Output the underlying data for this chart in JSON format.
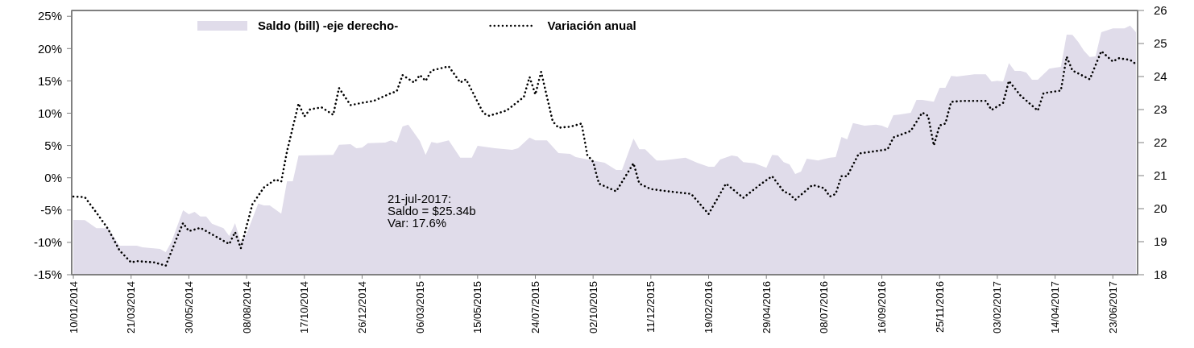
{
  "chart_data": {
    "type": "line",
    "legend": "top",
    "annotations": [
      "21-jul-2017:\nSaldo = $25.34b\nVar: 17.6%"
    ],
    "xlim": [
      "2014-01-08",
      "2017-07-23"
    ],
    "xticks": [
      {
        "value": "2014-01-10",
        "label": "10/01/2014"
      },
      {
        "value": "2014-03-21",
        "label": "21/03/2014"
      },
      {
        "value": "2014-05-30",
        "label": "30/05/2014"
      },
      {
        "value": "2014-08-08",
        "label": "08/08/2014"
      },
      {
        "value": "2014-10-17",
        "label": "17/10/2014"
      },
      {
        "value": "2014-12-26",
        "label": "26/12/2014"
      },
      {
        "value": "2015-03-06",
        "label": "06/03/2015"
      },
      {
        "value": "2015-05-15",
        "label": "15/05/2015"
      },
      {
        "value": "2015-07-24",
        "label": "24/07/2015"
      },
      {
        "value": "2015-10-02",
        "label": "02/10/2015"
      },
      {
        "value": "2015-12-11",
        "label": "11/12/2015"
      },
      {
        "value": "2016-02-19",
        "label": "19/02/2016"
      },
      {
        "value": "2016-04-29",
        "label": "29/04/2016"
      },
      {
        "value": "2016-07-08",
        "label": "08/07/2016"
      },
      {
        "value": "2016-09-16",
        "label": "16/09/2016"
      },
      {
        "value": "2016-11-25",
        "label": "25/11/2016"
      },
      {
        "value": "2017-02-03",
        "label": "03/02/2017"
      },
      {
        "value": "2017-04-14",
        "label": "14/04/2017"
      },
      {
        "value": "2017-06-23",
        "label": "23/06/2017"
      }
    ],
    "ylim": [
      -15,
      25.9
    ],
    "yticks": [
      {
        "value": -15,
        "label": "-15%"
      },
      {
        "value": -10,
        "label": "-10%"
      },
      {
        "value": -5,
        "label": "-5%"
      },
      {
        "value": 0,
        "label": "0%"
      },
      {
        "value": 5,
        "label": "5%"
      },
      {
        "value": 10,
        "label": "10%"
      },
      {
        "value": 15,
        "label": "15%"
      },
      {
        "value": 20,
        "label": "20%"
      },
      {
        "value": 25,
        "label": "25%"
      }
    ],
    "y2lim": [
      18,
      26
    ],
    "y2ticks": [
      18,
      19,
      20,
      21,
      22,
      23,
      24,
      25,
      26
    ],
    "series": [
      {
        "name": "Saldo (bill) -eje derecho-",
        "type": "area",
        "axis": "y2",
        "color": "#e0dcea",
        "x": [
          "2014-01-10",
          "2014-01-24",
          "2014-02-07",
          "2014-02-21",
          "2014-03-07",
          "2014-03-28",
          "2014-04-04",
          "2014-04-25",
          "2014-05-02",
          "2014-05-09",
          "2014-05-23",
          "2014-05-30",
          "2014-06-06",
          "2014-06-13",
          "2014-06-20",
          "2014-06-27",
          "2014-07-11",
          "2014-07-18",
          "2014-07-25",
          "2014-08-01",
          "2014-08-08",
          "2014-08-22",
          "2014-08-29",
          "2014-09-05",
          "2014-09-19",
          "2014-09-26",
          "2014-10-03",
          "2014-10-10",
          "2014-11-21",
          "2014-11-28",
          "2014-12-12",
          "2014-12-19",
          "2014-12-26",
          "2015-01-02",
          "2015-01-23",
          "2015-01-30",
          "2015-02-06",
          "2015-02-13",
          "2015-02-20",
          "2015-03-06",
          "2015-03-13",
          "2015-03-20",
          "2015-03-27",
          "2015-04-10",
          "2015-04-24",
          "2015-05-08",
          "2015-05-15",
          "2015-06-05",
          "2015-06-26",
          "2015-07-03",
          "2015-07-17",
          "2015-07-24",
          "2015-08-07",
          "2015-08-21",
          "2015-09-04",
          "2015-09-11",
          "2015-10-02",
          "2015-10-16",
          "2015-10-30",
          "2015-11-06",
          "2015-11-20",
          "2015-11-27",
          "2015-12-04",
          "2015-12-18",
          "2015-12-25",
          "2016-01-22",
          "2016-02-05",
          "2016-02-19",
          "2016-02-26",
          "2016-03-04",
          "2016-03-18",
          "2016-03-25",
          "2016-04-01",
          "2016-04-15",
          "2016-04-29",
          "2016-05-06",
          "2016-05-13",
          "2016-05-20",
          "2016-05-27",
          "2016-06-03",
          "2016-06-10",
          "2016-06-17",
          "2016-07-01",
          "2016-07-15",
          "2016-07-22",
          "2016-07-29",
          "2016-08-05",
          "2016-08-12",
          "2016-08-26",
          "2016-09-09",
          "2016-09-16",
          "2016-09-23",
          "2016-09-30",
          "2016-10-07",
          "2016-10-21",
          "2016-10-28",
          "2016-11-04",
          "2016-11-18",
          "2016-11-25",
          "2016-12-02",
          "2016-12-09",
          "2016-12-16",
          "2017-01-06",
          "2017-01-20",
          "2017-01-27",
          "2017-02-03",
          "2017-02-10",
          "2017-02-17",
          "2017-02-24",
          "2017-03-03",
          "2017-03-10",
          "2017-03-17",
          "2017-03-24",
          "2017-04-07",
          "2017-04-14",
          "2017-04-21",
          "2017-04-28",
          "2017-05-05",
          "2017-05-12",
          "2017-05-19",
          "2017-05-26",
          "2017-06-02",
          "2017-06-09",
          "2017-06-23",
          "2017-07-07",
          "2017-07-14",
          "2017-07-21"
        ],
        "values": [
          19.66,
          19.65,
          19.41,
          19.41,
          18.88,
          18.88,
          18.83,
          18.78,
          18.68,
          19.0,
          19.95,
          19.83,
          19.9,
          19.76,
          19.76,
          19.54,
          19.41,
          19.17,
          19.56,
          19.0,
          19.24,
          20.15,
          20.1,
          20.1,
          19.85,
          20.83,
          20.83,
          21.61,
          21.63,
          21.93,
          21.95,
          21.83,
          21.85,
          21.98,
          22.0,
          22.07,
          22.0,
          22.49,
          22.54,
          22.05,
          21.63,
          22.02,
          21.98,
          22.07,
          21.54,
          21.54,
          21.9,
          21.83,
          21.78,
          21.83,
          22.15,
          22.07,
          22.07,
          21.68,
          21.66,
          21.56,
          21.46,
          21.39,
          21.17,
          21.17,
          22.12,
          21.8,
          21.8,
          21.46,
          21.46,
          21.54,
          21.39,
          21.27,
          21.27,
          21.49,
          21.61,
          21.58,
          21.41,
          21.37,
          21.24,
          21.63,
          21.61,
          21.41,
          21.34,
          21.05,
          21.12,
          21.51,
          21.46,
          21.54,
          21.56,
          22.17,
          22.1,
          22.59,
          22.51,
          22.54,
          22.51,
          22.44,
          22.83,
          22.85,
          22.9,
          23.29,
          23.29,
          23.24,
          23.66,
          23.66,
          24.02,
          24.0,
          24.07,
          24.07,
          23.85,
          23.87,
          23.85,
          24.41,
          24.17,
          24.17,
          24.12,
          23.9,
          23.9,
          24.24,
          24.27,
          24.29,
          25.27,
          25.26,
          25.05,
          24.78,
          24.59,
          24.61,
          25.34,
          25.46,
          25.46,
          25.54,
          25.34
        ]
      },
      {
        "name": "Variación anual",
        "line_style": "dotted",
        "color": "#000000",
        "x": [
          "2014-01-10",
          "2014-01-24",
          "2014-02-07",
          "2014-02-21",
          "2014-03-07",
          "2014-03-21",
          "2014-03-28",
          "2014-04-18",
          "2014-05-02",
          "2014-05-16",
          "2014-05-23",
          "2014-05-30",
          "2014-06-13",
          "2014-06-27",
          "2014-07-18",
          "2014-07-25",
          "2014-08-01",
          "2014-08-15",
          "2014-08-29",
          "2014-09-12",
          "2014-09-19",
          "2014-09-26",
          "2014-10-10",
          "2014-10-17",
          "2014-10-24",
          "2014-11-07",
          "2014-11-21",
          "2014-11-28",
          "2014-12-12",
          "2014-12-26",
          "2015-01-09",
          "2015-01-30",
          "2015-02-06",
          "2015-02-13",
          "2015-02-27",
          "2015-03-06",
          "2015-03-13",
          "2015-03-20",
          "2015-04-10",
          "2015-04-24",
          "2015-05-01",
          "2015-05-22",
          "2015-05-29",
          "2015-06-19",
          "2015-07-10",
          "2015-07-17",
          "2015-07-24",
          "2015-07-31",
          "2015-08-14",
          "2015-08-21",
          "2015-09-04",
          "2015-09-18",
          "2015-09-25",
          "2015-10-02",
          "2015-10-09",
          "2015-10-30",
          "2015-11-20",
          "2015-11-27",
          "2015-12-11",
          "2016-01-01",
          "2016-01-29",
          "2016-02-19",
          "2016-03-11",
          "2016-04-01",
          "2016-04-22",
          "2016-05-06",
          "2016-05-20",
          "2016-05-27",
          "2016-06-03",
          "2016-06-24",
          "2016-07-08",
          "2016-07-15",
          "2016-07-22",
          "2016-07-29",
          "2016-08-05",
          "2016-08-19",
          "2016-09-02",
          "2016-09-23",
          "2016-09-30",
          "2016-10-21",
          "2016-11-04",
          "2016-11-11",
          "2016-11-18",
          "2016-11-25",
          "2016-12-02",
          "2016-12-09",
          "2016-12-23",
          "2017-01-20",
          "2017-01-27",
          "2017-02-10",
          "2017-02-17",
          "2017-03-03",
          "2017-03-24",
          "2017-03-31",
          "2017-04-21",
          "2017-04-28",
          "2017-05-05",
          "2017-05-26",
          "2017-06-09",
          "2017-06-23",
          "2017-06-30",
          "2017-07-14",
          "2017-07-21"
        ],
        "values": [
          -2.9,
          -3.0,
          -5.4,
          -7.9,
          -11.25,
          -13.1,
          -12.9,
          -13.1,
          -13.6,
          -9.1,
          -7.0,
          -8.25,
          -7.75,
          -8.75,
          -10.25,
          -8.4,
          -10.9,
          -4.1,
          -1.5,
          -0.25,
          -0.6,
          4.1,
          11.5,
          9.5,
          10.6,
          10.9,
          9.75,
          13.9,
          11.25,
          11.6,
          11.9,
          13.1,
          13.4,
          15.9,
          14.75,
          15.9,
          15.0,
          16.6,
          17.25,
          14.75,
          15.25,
          10.0,
          9.6,
          10.4,
          12.5,
          15.6,
          12.9,
          16.4,
          8.75,
          7.75,
          7.9,
          8.4,
          3.5,
          2.5,
          -0.9,
          -2.1,
          2.25,
          -0.9,
          -1.75,
          -2.1,
          -2.5,
          -5.6,
          -0.9,
          -3.1,
          -1.0,
          0.25,
          -2.1,
          -2.5,
          -3.4,
          -1.1,
          -1.6,
          -2.9,
          -2.5,
          0.25,
          0.25,
          3.75,
          4.0,
          4.4,
          6.25,
          7.25,
          10.1,
          9.6,
          5.0,
          8.1,
          8.4,
          11.75,
          11.9,
          11.9,
          10.5,
          11.6,
          15.0,
          12.75,
          10.4,
          13.1,
          13.5,
          18.75,
          16.6,
          15.25,
          19.6,
          18.0,
          18.5,
          18.25,
          17.6
        ]
      }
    ]
  }
}
